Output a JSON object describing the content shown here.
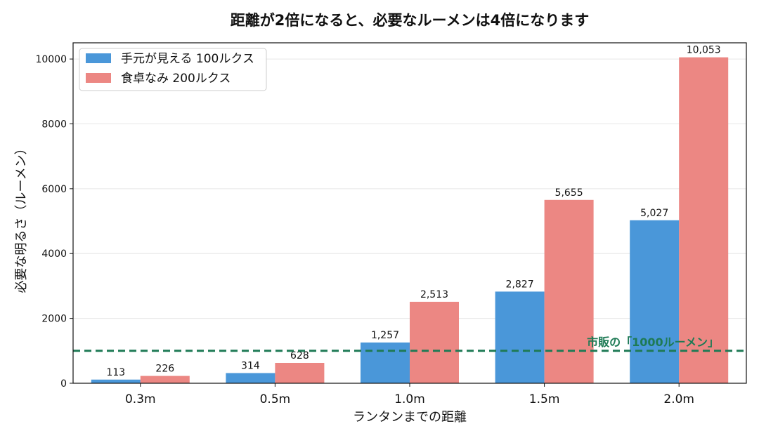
{
  "chart_data": {
    "type": "bar",
    "title": "距離が2倍になると、必要なルーメンは4倍になります",
    "xlabel": "ランタンまでの距離",
    "ylabel": "必要な明るさ（ルーメン）",
    "categories": [
      "0.3m",
      "0.5m",
      "1.0m",
      "1.5m",
      "2.0m"
    ],
    "ylim": [
      0,
      10500
    ],
    "yticks": [
      0,
      2000,
      4000,
      6000,
      8000,
      10000
    ],
    "grid": "y",
    "legend_position": "top-left",
    "series": [
      {
        "name": "手元が見える 100ルクス",
        "color": "#4a97d9",
        "values": [
          113,
          314,
          1257,
          2827,
          5027
        ],
        "labels": [
          "113",
          "314",
          "1,257",
          "2,827",
          "5,027"
        ]
      },
      {
        "name": "食卓なみ 200ルクス",
        "color": "#ec8783",
        "values": [
          226,
          628,
          2513,
          5655,
          10053
        ],
        "labels": [
          "226",
          "628",
          "2,513",
          "5,655",
          "10,053"
        ]
      }
    ],
    "reference_line": {
      "value": 1000,
      "label": "市販の「1000ルーメン」",
      "color": "#1e7a55",
      "style": "dashed"
    }
  }
}
